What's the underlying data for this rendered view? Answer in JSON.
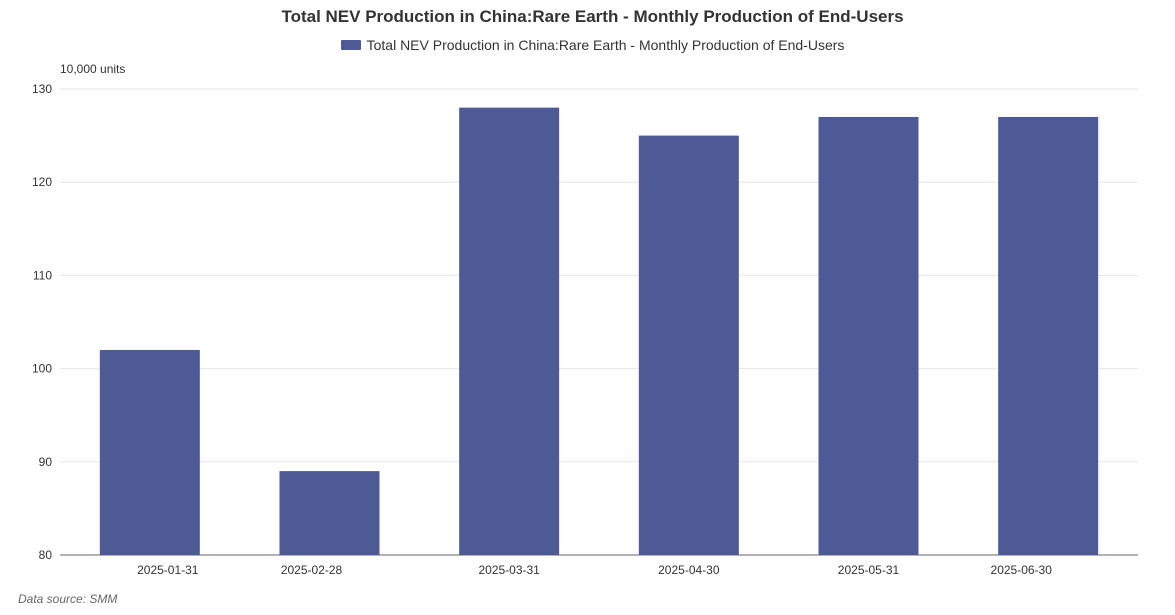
{
  "chart_data": {
    "type": "bar",
    "title": "Total NEV Production in China:Rare Earth - Monthly Production of End-Users",
    "legend": [
      "Total NEV Production in China:Rare Earth - Monthly Production of End-Users"
    ],
    "legend_position": "top-center",
    "ylabel": "10,000 units",
    "xlabel": "",
    "ylim": [
      80,
      130
    ],
    "yticks": [
      80,
      90,
      100,
      110,
      120,
      130
    ],
    "grid": true,
    "categories": [
      "2025-01-31",
      "2025-02-28",
      "2025-03-31",
      "2025-04-30",
      "2025-05-31",
      "2025-06-30"
    ],
    "series": [
      {
        "name": "Total NEV Production in China:Rare Earth - Monthly Production of End-Users",
        "values": [
          102,
          89,
          128,
          125,
          127,
          127
        ],
        "color": "#4e5a95"
      }
    ]
  },
  "source_note": "Data source:  SMM"
}
